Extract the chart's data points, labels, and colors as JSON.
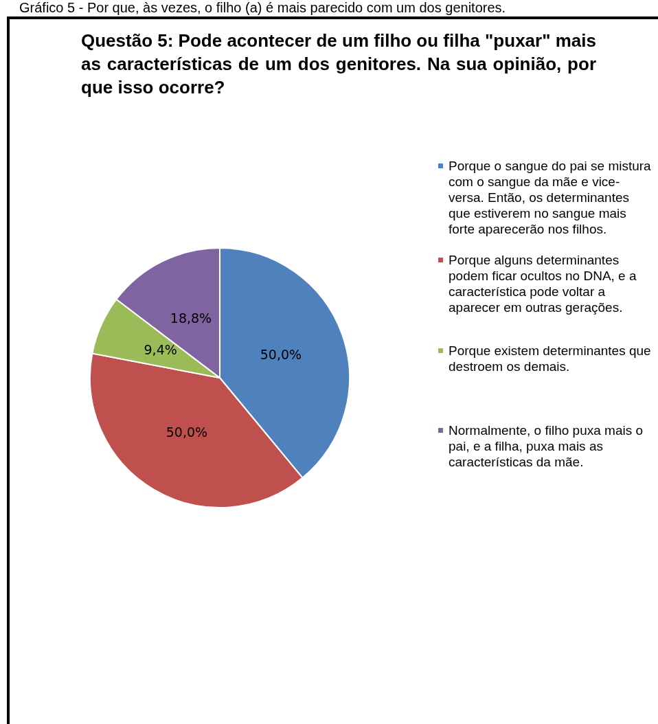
{
  "chart_data": {
    "type": "pie",
    "title": "Questão 5: Pode acontecer de um filho ou filha \"puxar\" mais as características de um dos genitores. Na sua opinião, por que isso ocorre?",
    "annotations": [
      "Gráfico 5 - Por que, às vezes, o filho (a) é mais parecido com um dos genitores."
    ],
    "categories": [
      "Porque o sangue do pai se mistura com o sangue da mãe e vice-versa. Então, os determinantes que estiverem no sangue mais forte aparecerão nos filhos.",
      "Porque alguns determinantes podem ficar ocultos no DNA, e a característica pode voltar a aparecer em outras gerações.",
      "Porque existem determinantes que destroem os demais.",
      "Normalmente, o filho puxa mais o pai, e a filha, puxa mais as características da mãe."
    ],
    "values": [
      50,
      50,
      9.4,
      18.8
    ],
    "value_labels": [
      "50,0%",
      "50,0%",
      "9,4%",
      "18,8%"
    ],
    "colors": [
      "#4f81bd",
      "#c0504d",
      "#9bbb59",
      "#8064a2"
    ],
    "legend": "right"
  }
}
